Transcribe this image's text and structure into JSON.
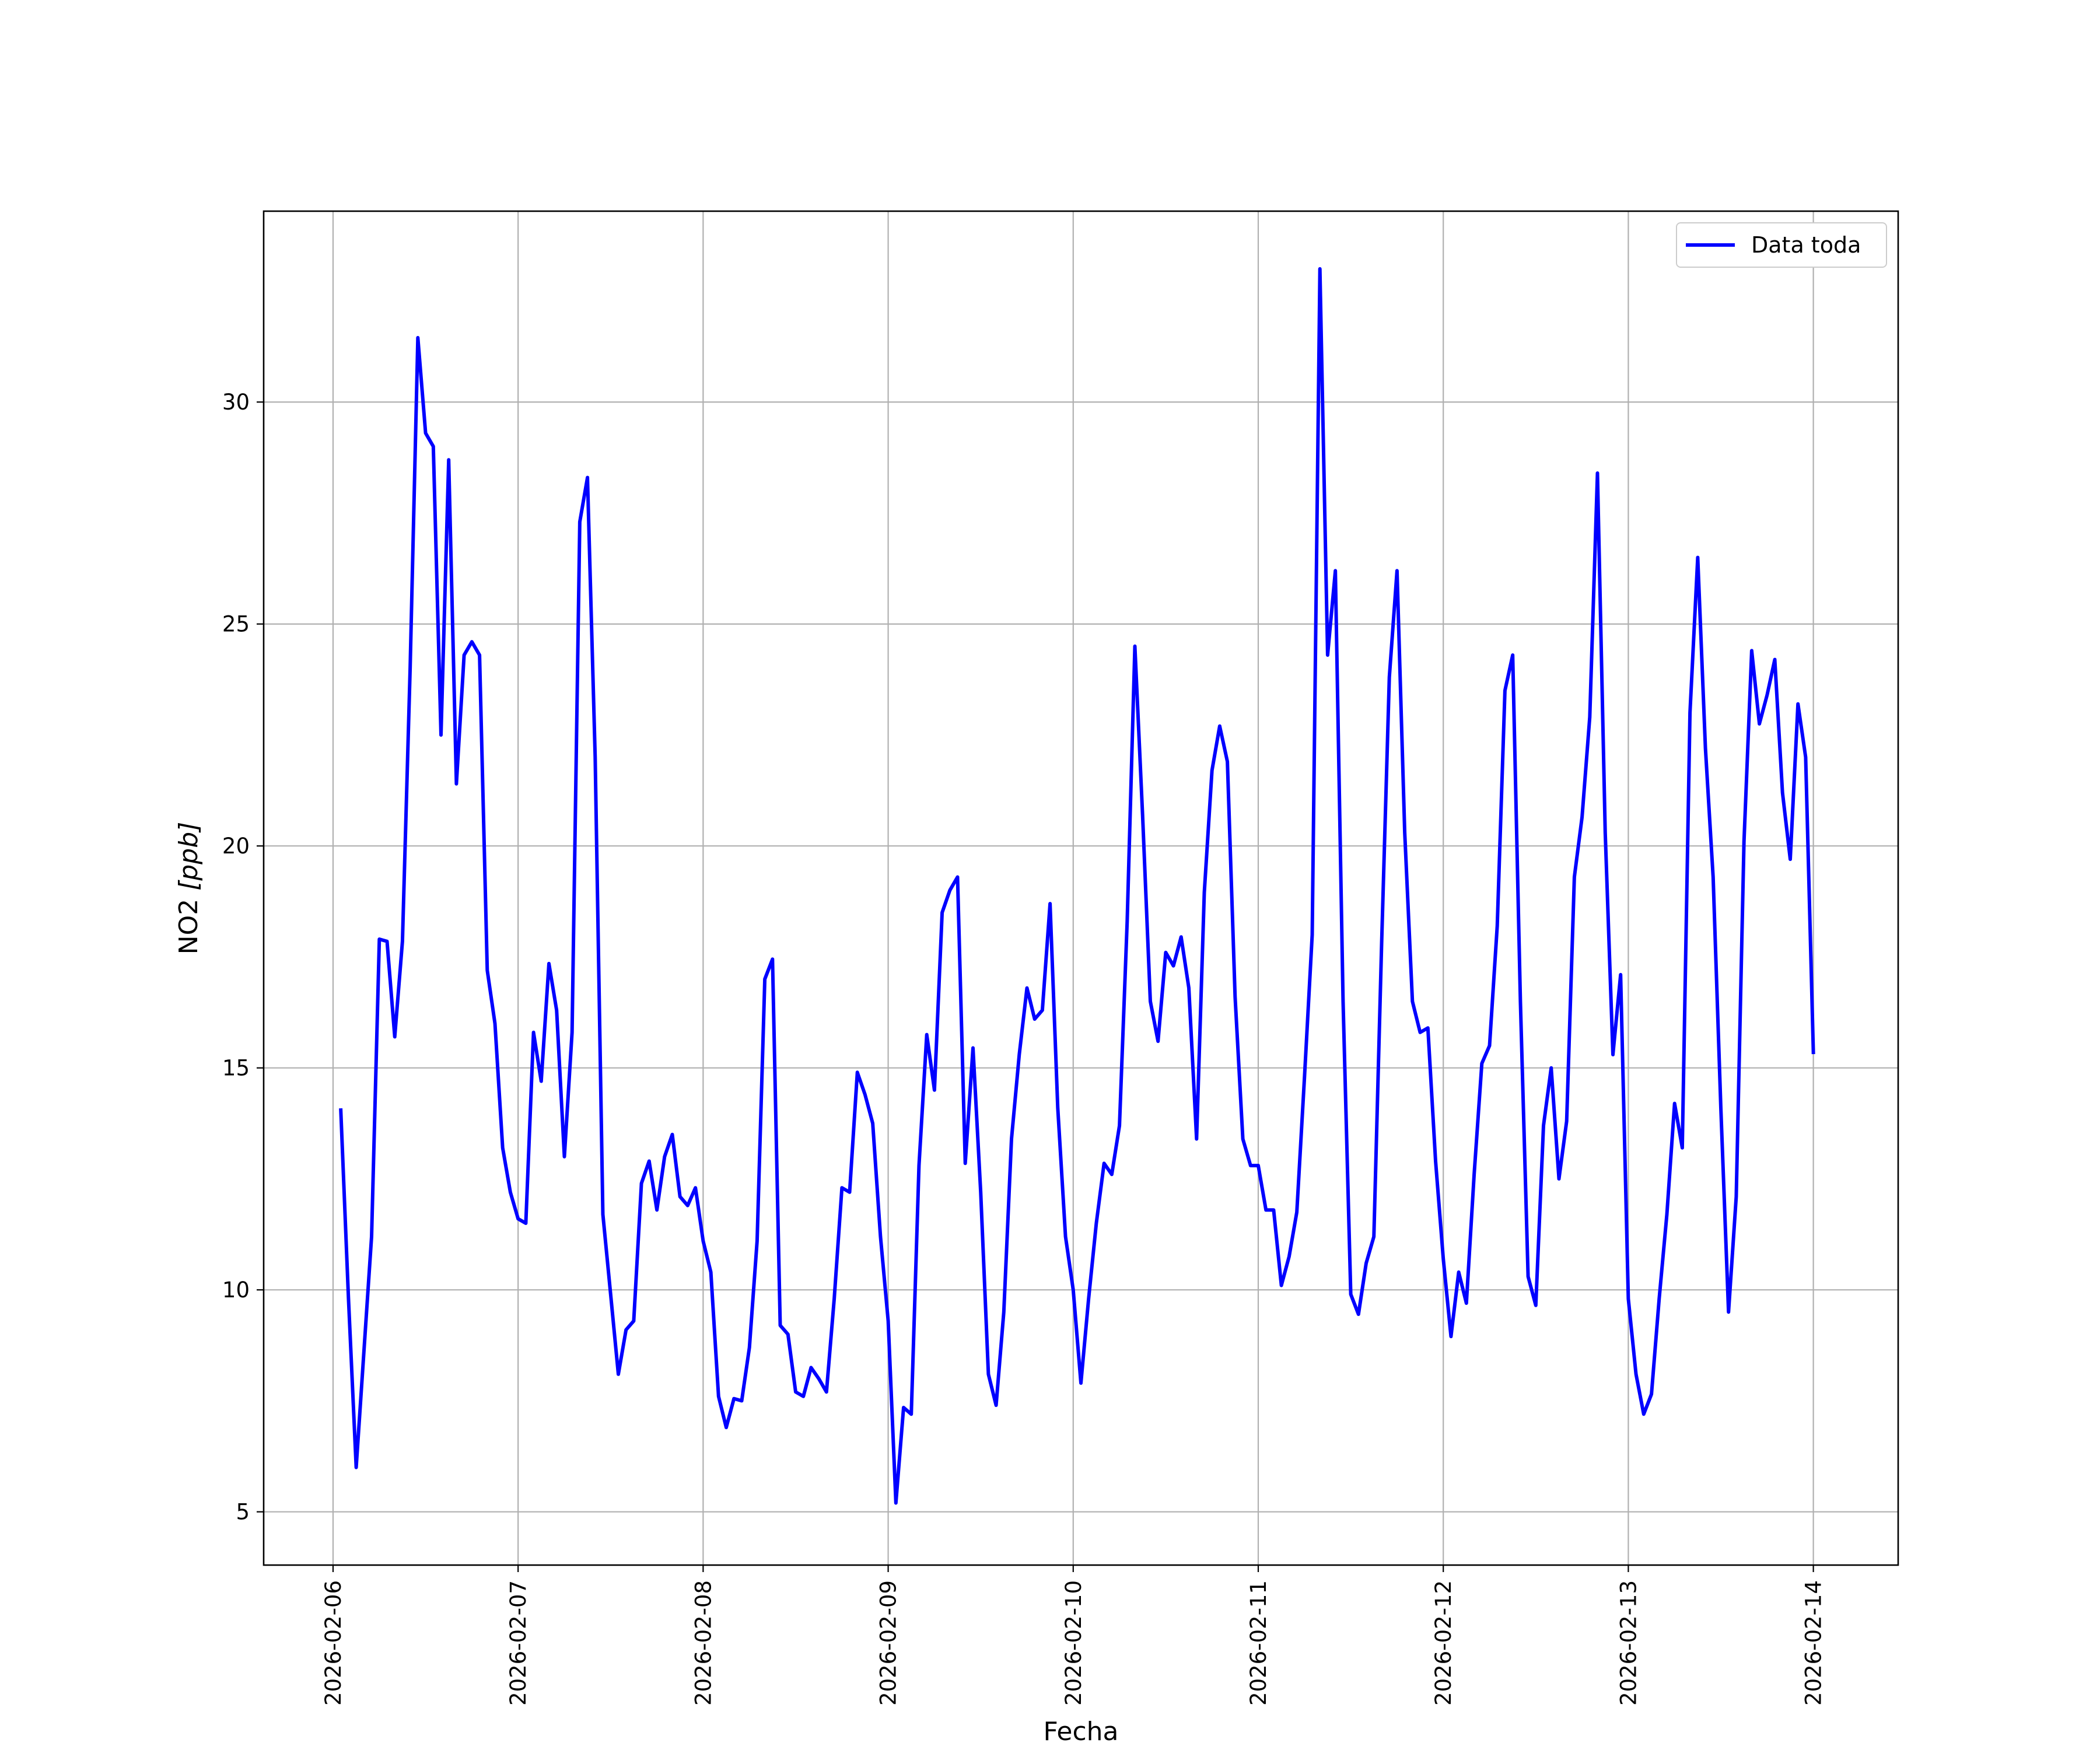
{
  "chart_data": {
    "type": "line",
    "xlabel": "Fecha",
    "ylabel_text": "NO2 ",
    "ylabel_unit": "[ppb]",
    "x_ticks": [
      "2026-02-06",
      "2026-02-07",
      "2026-02-08",
      "2026-02-09",
      "2026-02-10",
      "2026-02-11",
      "2026-02-12",
      "2026-02-13",
      "2026-02-14"
    ],
    "y_ticks": [
      5,
      10,
      15,
      20,
      25,
      30
    ],
    "xlim": [
      "2026-02-05 15:00",
      "2026-02-14 11:00"
    ],
    "ylim": [
      3.8,
      34.3
    ],
    "grid": true,
    "legend_position": "top-right",
    "line_color": "#0000ff",
    "series": [
      {
        "name": "Data toda",
        "x_start": "2026-02-06 01:00",
        "x_step": "1 hour",
        "values": [
          14.05,
          9.8,
          6.0,
          8.6,
          11.2,
          17.9,
          17.85,
          15.7,
          17.85,
          24.0,
          31.45,
          29.3,
          29.0,
          22.5,
          28.7,
          21.4,
          24.3,
          24.6,
          24.3,
          17.2,
          16.0,
          13.2,
          12.2,
          11.6,
          11.5,
          15.8,
          14.7,
          17.35,
          16.3,
          13.0,
          15.8,
          27.3,
          28.3,
          22.0,
          11.7,
          9.9,
          8.1,
          9.1,
          9.3,
          12.4,
          12.9,
          11.8,
          13.0,
          13.5,
          12.1,
          11.9,
          12.3,
          11.1,
          10.4,
          7.6,
          6.9,
          7.55,
          7.5,
          8.7,
          11.1,
          17.0,
          17.45,
          9.2,
          9.0,
          7.7,
          7.6,
          8.25,
          8.0,
          7.7,
          9.8,
          12.3,
          12.2,
          14.9,
          14.4,
          13.75,
          11.2,
          9.3,
          5.2,
          7.35,
          7.2,
          12.8,
          15.75,
          14.5,
          18.5,
          19.0,
          19.3,
          12.85,
          15.45,
          12.2,
          8.1,
          7.4,
          9.5,
          13.4,
          15.3,
          16.8,
          16.1,
          16.3,
          18.7,
          14.1,
          11.2,
          10.0,
          7.9,
          9.8,
          11.5,
          12.85,
          12.6,
          13.7,
          18.3,
          24.5,
          20.7,
          16.5,
          15.6,
          17.6,
          17.3,
          17.95,
          16.8,
          13.4,
          18.95,
          21.7,
          22.7,
          21.9,
          16.6,
          13.4,
          12.8,
          12.8,
          11.8,
          11.8,
          10.1,
          10.75,
          11.75,
          14.8,
          18.0,
          33.0,
          24.3,
          26.2,
          16.5,
          9.9,
          9.45,
          10.6,
          11.2,
          17.8,
          23.8,
          26.2,
          20.3,
          16.5,
          15.8,
          15.9,
          12.9,
          10.7,
          8.95,
          10.4,
          9.7,
          12.6,
          15.1,
          15.5,
          18.2,
          23.5,
          24.3,
          16.5,
          10.3,
          9.65,
          13.7,
          15.0,
          12.5,
          13.8,
          19.3,
          20.65,
          22.9,
          28.4,
          20.3,
          15.3,
          17.1,
          9.8,
          8.1,
          7.2,
          7.65,
          9.8,
          11.7,
          14.2,
          13.2,
          23.0,
          26.5,
          22.2,
          19.3,
          14.1,
          9.5,
          12.1,
          20.1,
          24.4,
          22.75,
          23.4,
          24.2,
          21.2,
          19.7,
          23.2,
          22.0,
          15.35
        ]
      }
    ]
  }
}
